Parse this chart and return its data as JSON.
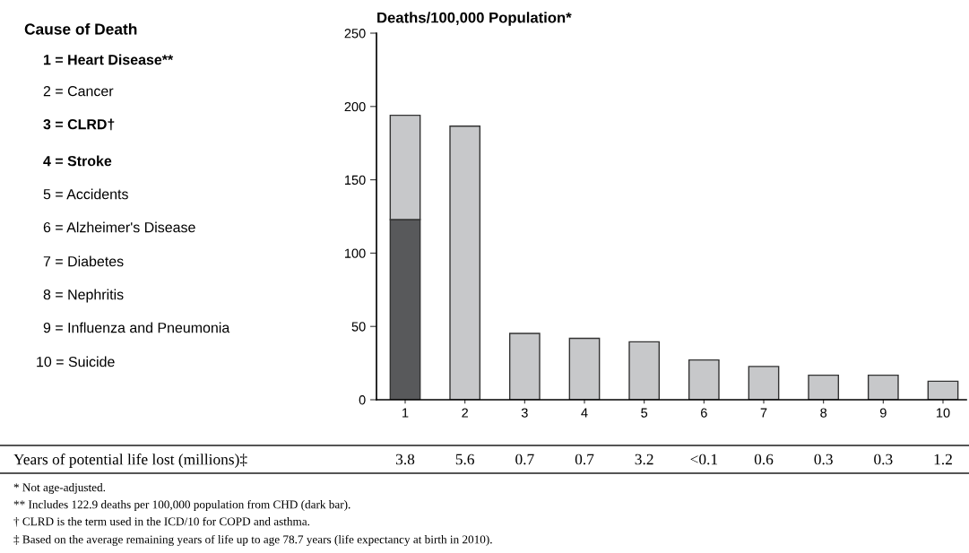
{
  "chart_data": {
    "type": "bar",
    "title": "Deaths/100,000 Population*",
    "stacked": true,
    "categories": [
      "1",
      "2",
      "3",
      "4",
      "5",
      "6",
      "7",
      "8",
      "9",
      "10"
    ],
    "series": [
      {
        "color": "#58595b",
        "values": [
          122.9,
          null,
          null,
          null,
          null,
          null,
          null,
          null,
          null,
          null
        ]
      },
      {
        "color": "#c7c8ca",
        "values": [
          71.1,
          186.6,
          45.2,
          41.9,
          39.5,
          27.1,
          22.7,
          16.7,
          16.7,
          12.6
        ]
      }
    ],
    "ylim": [
      0,
      250
    ],
    "yticks": [
      0,
      50,
      100,
      150,
      200,
      250
    ],
    "grid": false,
    "legend": false,
    "annotations": [
      "Cause of Death",
      "1 = Heart Disease**",
      "2 = Cancer",
      "3 = CLRD†",
      "4 = Stroke",
      "5 = Accidents",
      "6 = Alzheimer's Disease",
      "7 = Diabetes",
      "8 = Nephritis",
      "9 = Influenza and Pneumonia",
      "10 = Suicide",
      "Years of potential life lost (millions)‡",
      "3.8",
      "5.6",
      "0.7",
      "0.7",
      "3.2",
      "<0.1",
      "0.6",
      "0.3",
      "0.3",
      "1.2",
      "* Not age-adjusted.",
      "** Includes 122.9 deaths per 100,000 population from CHD (dark bar).",
      "† CLRD is the term used in the ICD/10 for COPD and asthma.",
      "‡ Based on the average remaining years of life up to age 78.7 years (life expectancy at birth in 2010)."
    ]
  }
}
